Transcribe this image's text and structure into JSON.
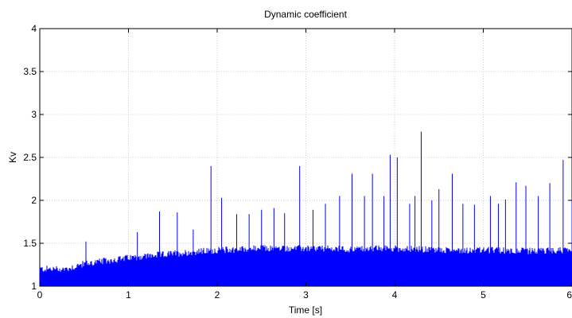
{
  "chart_data": {
    "type": "line",
    "title": "Dynamic coefficient",
    "xlabel": "Time [s]",
    "ylabel": "Kv",
    "xlim": [
      0,
      6
    ],
    "ylim": [
      1,
      4
    ],
    "grid": true,
    "x_ticks": [
      "0",
      "1",
      "2",
      "3",
      "4",
      "5",
      "6"
    ],
    "y_ticks": [
      "1",
      "1.5",
      "2",
      "2.5",
      "3",
      "3.5",
      "4"
    ],
    "series": [
      {
        "color": "#0000ff",
        "baseline": 1.0,
        "envelope": [
          [
            0.0,
            1.2
          ],
          [
            0.3,
            1.2
          ],
          [
            0.5,
            1.26
          ],
          [
            1.0,
            1.33
          ],
          [
            1.5,
            1.38
          ],
          [
            2.0,
            1.42
          ],
          [
            2.5,
            1.44
          ],
          [
            3.0,
            1.44
          ],
          [
            3.5,
            1.43
          ],
          [
            4.0,
            1.44
          ],
          [
            4.5,
            1.42
          ],
          [
            5.0,
            1.42
          ],
          [
            5.5,
            1.41
          ],
          [
            6.0,
            1.42
          ]
        ],
        "peaks": [
          [
            0.52,
            1.52
          ],
          [
            1.1,
            1.63
          ],
          [
            1.35,
            1.87
          ],
          [
            1.55,
            1.86
          ],
          [
            1.73,
            1.66
          ],
          [
            1.93,
            2.4
          ],
          [
            2.05,
            2.03
          ],
          [
            2.22,
            1.84
          ],
          [
            2.36,
            1.84
          ],
          [
            2.5,
            1.89
          ],
          [
            2.64,
            1.91
          ],
          [
            2.76,
            1.85
          ],
          [
            2.93,
            2.4
          ],
          [
            3.08,
            1.89
          ],
          [
            3.22,
            1.96
          ],
          [
            3.38,
            2.05
          ],
          [
            3.52,
            2.31
          ],
          [
            3.66,
            2.05
          ],
          [
            3.75,
            2.31
          ],
          [
            3.88,
            2.05
          ],
          [
            3.95,
            2.53
          ],
          [
            4.03,
            2.5
          ],
          [
            4.17,
            1.96
          ],
          [
            4.23,
            2.05
          ],
          [
            4.3,
            2.8
          ],
          [
            4.42,
            2.0
          ],
          [
            4.5,
            2.13
          ],
          [
            4.65,
            2.31
          ],
          [
            4.77,
            1.96
          ],
          [
            4.9,
            1.95
          ],
          [
            5.08,
            2.05
          ],
          [
            5.17,
            1.96
          ],
          [
            5.25,
            2.01
          ],
          [
            5.37,
            2.21
          ],
          [
            5.48,
            2.17
          ],
          [
            5.62,
            2.05
          ],
          [
            5.75,
            2.2
          ],
          [
            5.9,
            2.47
          ],
          [
            6.0,
            2.0
          ]
        ]
      }
    ]
  }
}
